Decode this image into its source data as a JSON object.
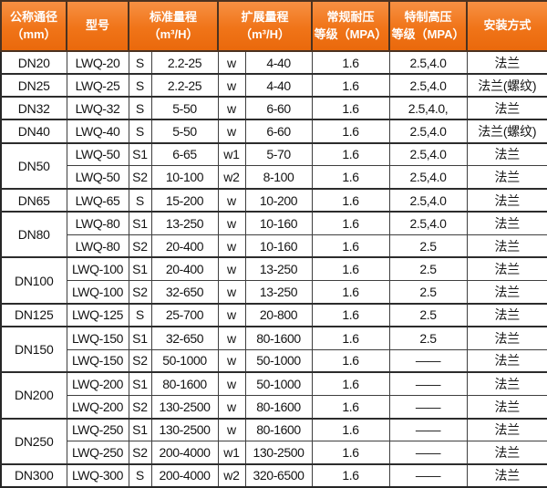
{
  "accent_colors": {
    "header_orange": "#f07418",
    "header_orange_light": "#f79043",
    "header_border": "#4b3220",
    "body_border": "#3f3f3f",
    "header_text": "#ffffff",
    "body_text": "#141414"
  },
  "table": {
    "headers": [
      {
        "id": "diameter",
        "lines": [
          "公称通径",
          "（mm）"
        ]
      },
      {
        "id": "model",
        "lines": [
          "型号"
        ]
      },
      {
        "id": "std_range",
        "lines": [
          "标准量程",
          "（m³/H）"
        ]
      },
      {
        "id": "ext_range",
        "lines": [
          "扩展量程",
          "（m³/H）"
        ]
      },
      {
        "id": "normal_pressure",
        "lines": [
          "常规耐压",
          "等级（MPA）"
        ]
      },
      {
        "id": "high_pressure",
        "lines": [
          "特制高压",
          "等级（MPA）"
        ]
      },
      {
        "id": "install",
        "lines": [
          "安装方式"
        ]
      }
    ],
    "groups": [
      {
        "diameter": "DN20",
        "rows": [
          {
            "model": "LWQ-20",
            "std_code": "S",
            "std_range": "2.2-25",
            "ext_code": "w",
            "ext_range": "4-40",
            "normal_mpa": "1.6",
            "high_mpa": "2.5,4.0",
            "install": "法兰"
          }
        ]
      },
      {
        "diameter": "DN25",
        "rows": [
          {
            "model": "LWQ-25",
            "std_code": "S",
            "std_range": "2.2-25",
            "ext_code": "w",
            "ext_range": "4-40",
            "normal_mpa": "1.6",
            "high_mpa": "2.5,4.0",
            "install": "法兰(螺纹)"
          }
        ]
      },
      {
        "diameter": "DN32",
        "rows": [
          {
            "model": "LWQ-32",
            "std_code": "S",
            "std_range": "5-50",
            "ext_code": "w",
            "ext_range": "6-60",
            "normal_mpa": "1.6",
            "high_mpa": "2.5,4.0,",
            "install": "法兰"
          }
        ]
      },
      {
        "diameter": "DN40",
        "rows": [
          {
            "model": "LWQ-40",
            "std_code": "S",
            "std_range": "5-50",
            "ext_code": "w",
            "ext_range": "6-60",
            "normal_mpa": "1.6",
            "high_mpa": "2.5,4.0",
            "install": "法兰(螺纹)"
          }
        ]
      },
      {
        "diameter": "DN50",
        "rows": [
          {
            "model": "LWQ-50",
            "std_code": "S1",
            "std_range": "6-65",
            "ext_code": "w1",
            "ext_range": "5-70",
            "normal_mpa": "1.6",
            "high_mpa": "2.5,4.0",
            "install": "法兰"
          },
          {
            "model": "LWQ-50",
            "std_code": "S2",
            "std_range": "10-100",
            "ext_code": "w2",
            "ext_range": "8-100",
            "normal_mpa": "1.6",
            "high_mpa": "2.5,4.0",
            "install": "法兰"
          }
        ]
      },
      {
        "diameter": "DN65",
        "rows": [
          {
            "model": "LWQ-65",
            "std_code": "S",
            "std_range": "15-200",
            "ext_code": "w",
            "ext_range": "10-200",
            "normal_mpa": "1.6",
            "high_mpa": "2.5,4.0",
            "install": "法兰"
          }
        ]
      },
      {
        "diameter": "DN80",
        "rows": [
          {
            "model": "LWQ-80",
            "std_code": "S1",
            "std_range": "13-250",
            "ext_code": "w",
            "ext_range": "10-160",
            "normal_mpa": "1.6",
            "high_mpa": "2.5,4.0",
            "install": "法兰"
          },
          {
            "model": "LWQ-80",
            "std_code": "S2",
            "std_range": "20-400",
            "ext_code": "w",
            "ext_range": "10-160",
            "normal_mpa": "1.6",
            "high_mpa": "2.5",
            "install": "法兰"
          }
        ]
      },
      {
        "diameter": "DN100",
        "rows": [
          {
            "model": "LWQ-100",
            "std_code": "S1",
            "std_range": "20-400",
            "ext_code": "w",
            "ext_range": "13-250",
            "normal_mpa": "1.6",
            "high_mpa": "2.5",
            "install": "法兰"
          },
          {
            "model": "LWQ-100",
            "std_code": "S2",
            "std_range": "32-650",
            "ext_code": "w",
            "ext_range": "13-250",
            "normal_mpa": "1.6",
            "high_mpa": "2.5",
            "install": "法兰"
          }
        ]
      },
      {
        "diameter": "DN125",
        "rows": [
          {
            "model": "LWQ-125",
            "std_code": "S",
            "std_range": "25-700",
            "ext_code": "w",
            "ext_range": "20-800",
            "normal_mpa": "1.6",
            "high_mpa": "2.5",
            "install": "法兰"
          }
        ]
      },
      {
        "diameter": "DN150",
        "rows": [
          {
            "model": "LWQ-150",
            "std_code": "S1",
            "std_range": "32-650",
            "ext_code": "w",
            "ext_range": "80-1600",
            "normal_mpa": "1.6",
            "high_mpa": "2.5",
            "install": "法兰"
          },
          {
            "model": "LWQ-150",
            "std_code": "S2",
            "std_range": "50-1000",
            "ext_code": "w",
            "ext_range": "50-1000",
            "normal_mpa": "1.6",
            "high_mpa": "——",
            "install": "法兰"
          }
        ]
      },
      {
        "diameter": "DN200",
        "rows": [
          {
            "model": "LWQ-200",
            "std_code": "S1",
            "std_range": "80-1600",
            "ext_code": "w",
            "ext_range": "50-1000",
            "normal_mpa": "1.6",
            "high_mpa": "——",
            "install": "法兰"
          },
          {
            "model": "LWQ-200",
            "std_code": "S2",
            "std_range": "130-2500",
            "ext_code": "w",
            "ext_range": "80-1600",
            "normal_mpa": "1.6",
            "high_mpa": "——",
            "install": "法兰"
          }
        ]
      },
      {
        "diameter": "DN250",
        "rows": [
          {
            "model": "LWQ-250",
            "std_code": "S1",
            "std_range": "130-2500",
            "ext_code": "w",
            "ext_range": "80-1600",
            "normal_mpa": "1.6",
            "high_mpa": "——",
            "install": "法兰"
          },
          {
            "model": "LWQ-250",
            "std_code": "S2",
            "std_range": "200-4000",
            "ext_code": "w1",
            "ext_range": "130-2500",
            "normal_mpa": "1.6",
            "high_mpa": "——",
            "install": "法兰"
          }
        ]
      },
      {
        "diameter": "DN300",
        "rows": [
          {
            "model": "LWQ-300",
            "std_code": "S",
            "std_range": "200-4000",
            "ext_code": "w2",
            "ext_range": "320-6500",
            "normal_mpa": "1.6",
            "high_mpa": "——",
            "install": "法兰"
          }
        ]
      }
    ]
  }
}
